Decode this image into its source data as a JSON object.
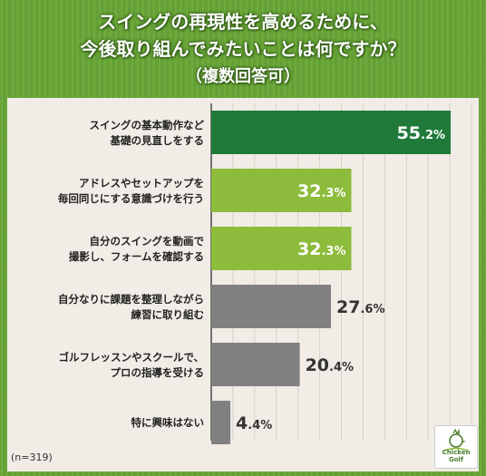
{
  "title": {
    "line1": "スイングの再現性を高めるために、",
    "line2": "今後取り組んでみたいことは何ですか？",
    "line3": "（複数回答可）"
  },
  "note": "(n=319)",
  "logo": {
    "line1": "Chicken",
    "line2": "Golf"
  },
  "colors": {
    "top": "#1f7a3a",
    "mid": "#8dbb3b",
    "gray": "#808080",
    "grass": "#6ea83a",
    "panel": "#f1ece6"
  },
  "chart_data": {
    "type": "bar",
    "orientation": "horizontal",
    "unit": "%",
    "categories": [
      [
        "スイングの基本動作など",
        "基礎の見直しをする"
      ],
      [
        "アドレスやセットアップを",
        "毎回同じにする意識づけを行う"
      ],
      [
        "自分のスイングを動画で",
        "撮影し、フォームを確認する"
      ],
      [
        "自分なりに課題を整理しながら",
        "練習に取り組む"
      ],
      [
        "ゴルフレッスンやスクールで、",
        "プロの指導を受ける"
      ],
      [
        "特に興味はない"
      ]
    ],
    "values": [
      55.2,
      32.3,
      32.3,
      27.6,
      20.4,
      4.4
    ],
    "value_labels": [
      [
        "55",
        ".2%"
      ],
      [
        "32",
        ".3%"
      ],
      [
        "32",
        ".3%"
      ],
      [
        "27",
        ".6%"
      ],
      [
        "20",
        ".4%"
      ],
      [
        "4",
        ".4%"
      ]
    ],
    "bar_colors": [
      "#1f7a3a",
      "#8dbb3b",
      "#8dbb3b",
      "#808080",
      "#808080",
      "#808080"
    ],
    "label_inside": [
      true,
      true,
      true,
      false,
      false,
      false
    ],
    "xlim": [
      0,
      60
    ],
    "grid": true
  }
}
